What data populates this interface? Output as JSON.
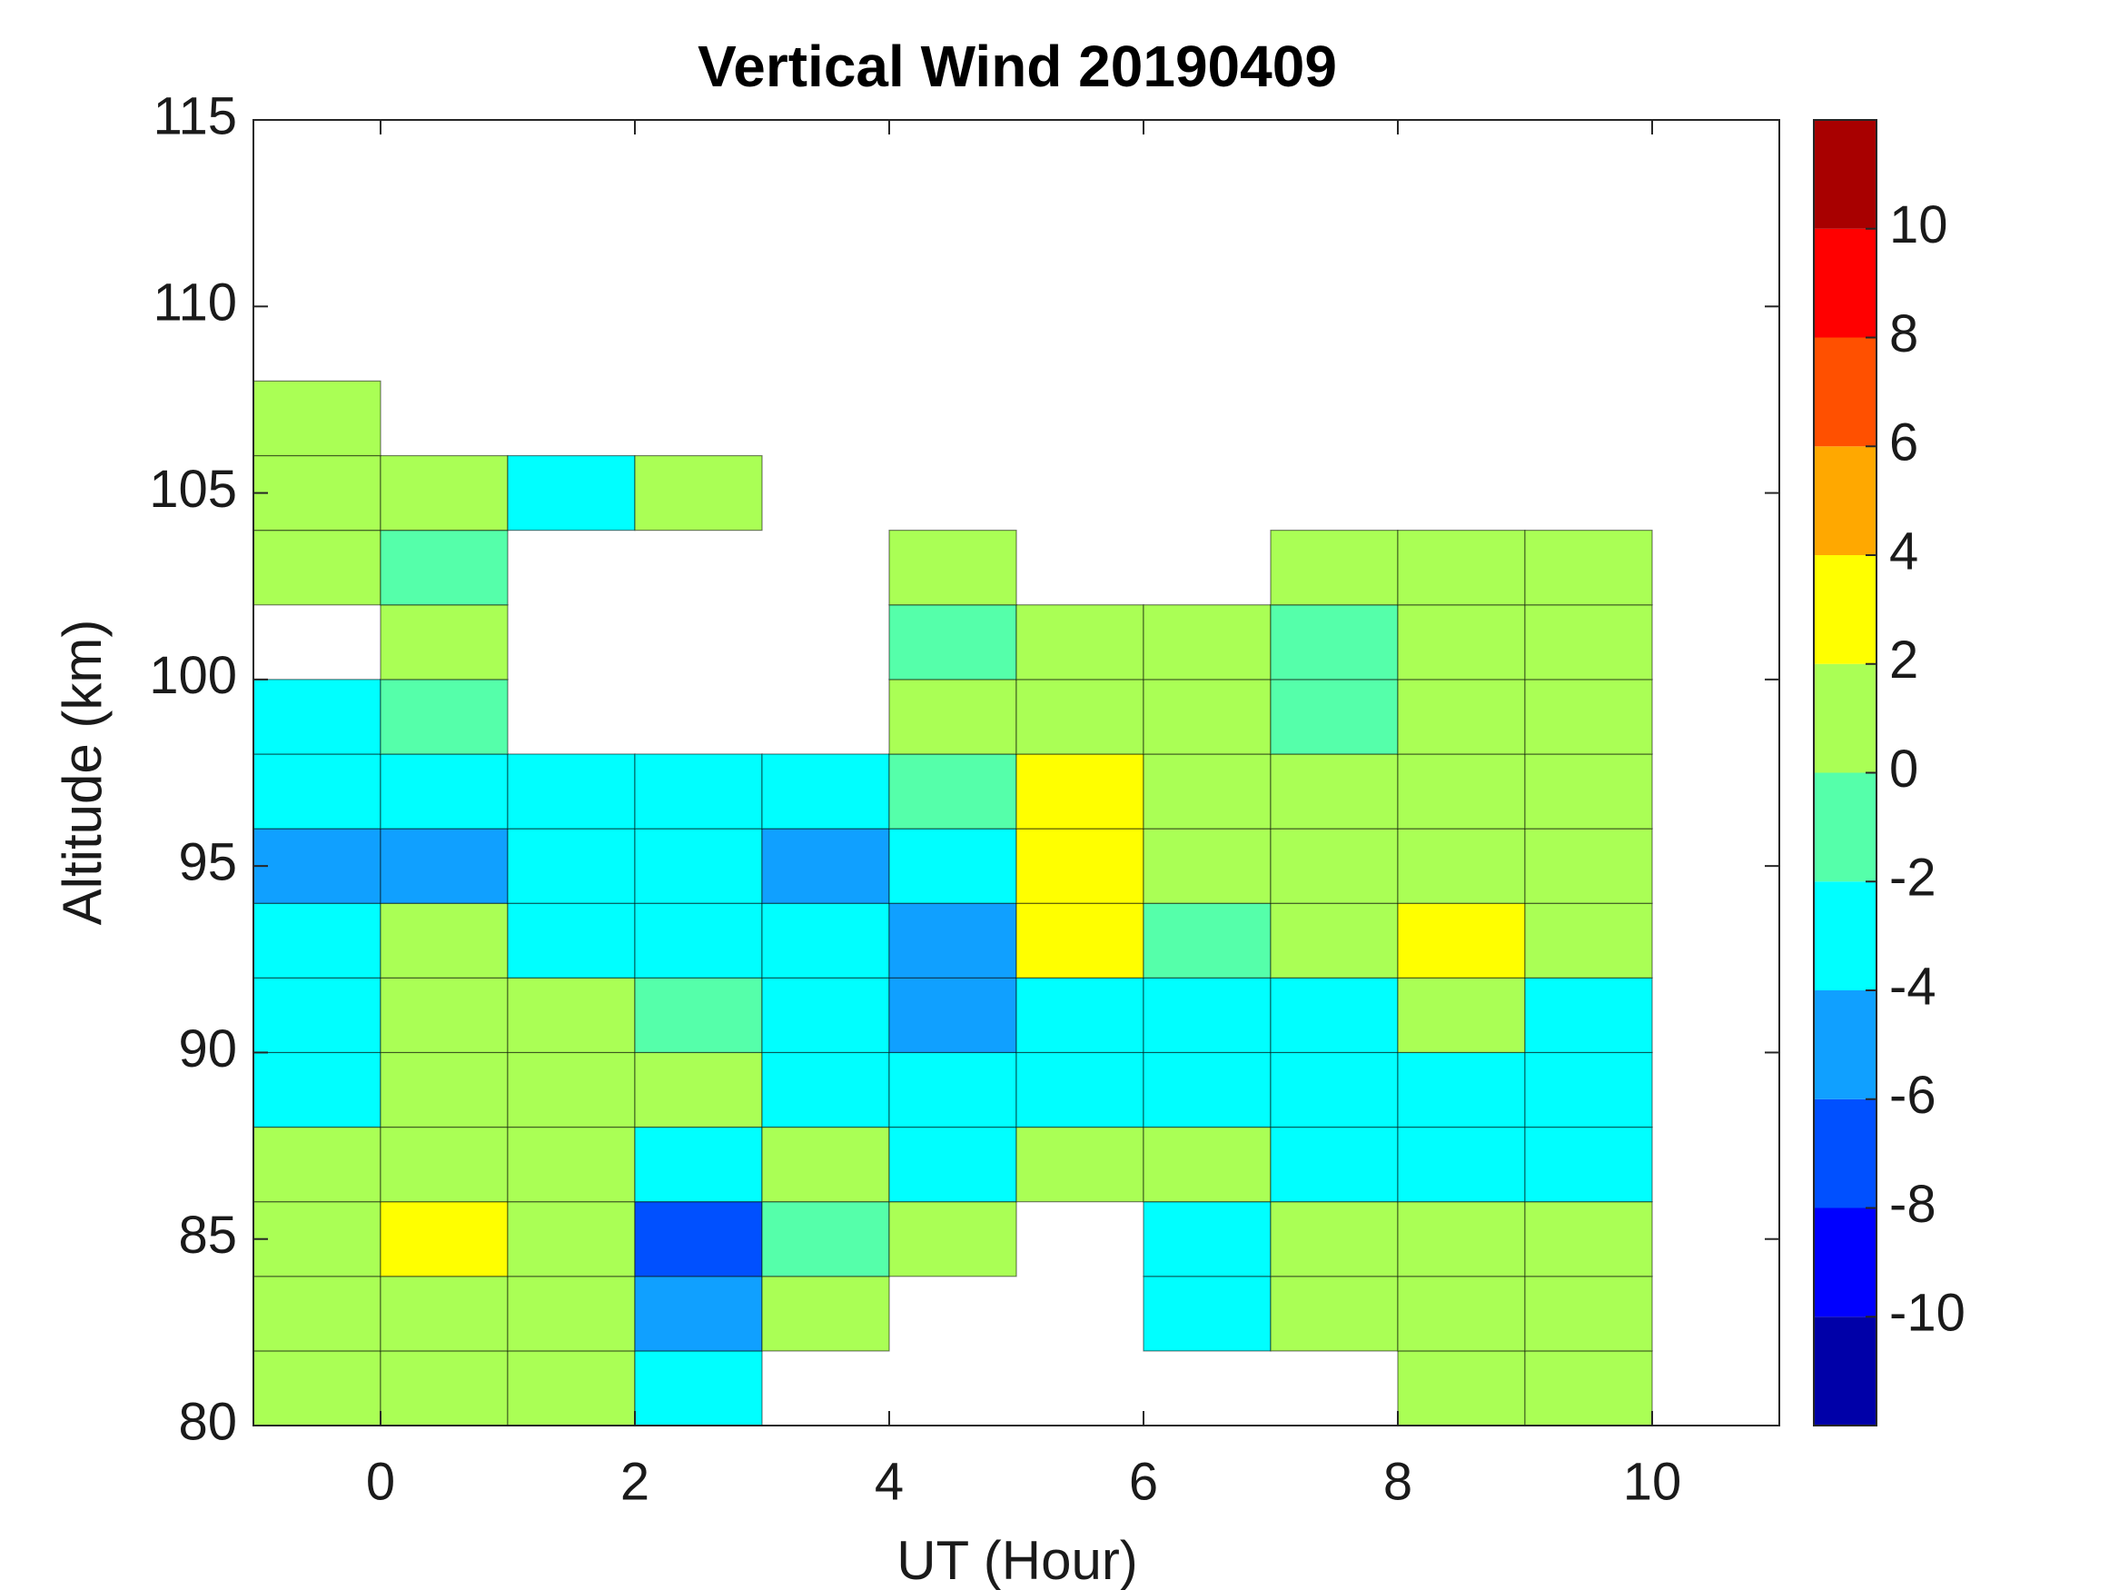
{
  "chart_data": {
    "type": "contour",
    "title": "Vertical Wind 20190409",
    "xlabel": "UT (Hour)",
    "ylabel": "Altitude (km)",
    "xlim": [
      -1,
      11
    ],
    "xticks": [
      0,
      2,
      4,
      6,
      8,
      10
    ],
    "ylim": [
      80,
      115
    ],
    "yticks": [
      80,
      85,
      90,
      95,
      100,
      105,
      110,
      115
    ],
    "x": [
      -0.5,
      0.5,
      1.5,
      2.5,
      3.5,
      4.5,
      5.5,
      6.5,
      7.5,
      8.5,
      9.5
    ],
    "y": [
      81,
      83,
      85,
      87,
      89,
      91,
      93,
      95,
      97,
      99,
      101,
      103,
      105,
      107
    ],
    "z": [
      [
        1,
        1,
        1,
        -3,
        null,
        null,
        null,
        null,
        null,
        1,
        1
      ],
      [
        1,
        1,
        1,
        -5,
        1,
        null,
        null,
        -3,
        1,
        1,
        1
      ],
      [
        1,
        3,
        1,
        -7,
        -1,
        1,
        null,
        -3,
        1,
        1,
        1
      ],
      [
        1,
        1,
        1,
        -3,
        1,
        -3,
        1,
        1,
        -3,
        -3,
        -3
      ],
      [
        -3,
        1,
        1,
        1,
        -3,
        -3,
        -3,
        -3,
        -3,
        -3,
        -3
      ],
      [
        -3,
        1,
        1,
        -1,
        -3,
        -5,
        -3,
        -3,
        -3,
        1,
        -3
      ],
      [
        -3,
        1,
        -3,
        -4,
        -4,
        -5,
        3,
        -1,
        1,
        3,
        1
      ],
      [
        -5,
        -5,
        -4,
        -3,
        -5,
        -3,
        3,
        0,
        1,
        1,
        1
      ],
      [
        -4,
        -3,
        -3,
        -3,
        -3,
        -1,
        3,
        0,
        1,
        1,
        1
      ],
      [
        -2.5,
        -1,
        null,
        null,
        null,
        0,
        1,
        0,
        -1,
        1,
        1
      ],
      [
        null,
        0,
        null,
        null,
        null,
        -1,
        0,
        0,
        -1,
        1,
        1
      ],
      [
        1,
        -1,
        null,
        null,
        null,
        1,
        null,
        null,
        1,
        1,
        0
      ],
      [
        1,
        0.5,
        -3,
        1,
        null,
        null,
        null,
        null,
        null,
        null,
        null
      ],
      [
        1,
        null,
        null,
        null,
        null,
        null,
        null,
        null,
        null,
        null,
        null
      ]
    ],
    "colorbar": {
      "lim": [
        -12,
        12
      ],
      "levels": [
        -12,
        -10,
        -8,
        -6,
        -4,
        -2,
        0,
        2,
        4,
        6,
        8,
        10,
        12
      ],
      "colors": [
        "#0000a8",
        "#0000ff",
        "#0050ff",
        "#10a0ff",
        "#00ffff",
        "#55ffaa",
        "#aaff55",
        "#ffff00",
        "#ffa800",
        "#ff5000",
        "#ff0000",
        "#a80000"
      ],
      "ticks": [
        -10,
        -8,
        -6,
        -4,
        -2,
        0,
        2,
        4,
        6,
        8,
        10
      ]
    }
  }
}
